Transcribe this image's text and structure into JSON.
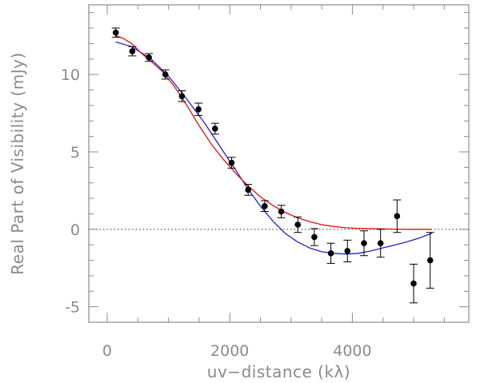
{
  "chart_data": {
    "type": "scatter",
    "title": "",
    "xlabel": "uv−distance (kλ)",
    "ylabel": "Real Part of Visibility (mJy)",
    "xlim": [
      -300,
      5900
    ],
    "ylim": [
      -6,
      14.5
    ],
    "x_ticks": [
      0,
      2000,
      4000
    ],
    "y_ticks": [
      -5,
      0,
      5,
      10
    ],
    "grid": false,
    "zero_line": "dotted",
    "colors": {
      "axis": "#8a8a8a",
      "points": "#000000",
      "blue_model": "#2222cc",
      "red_model": "#dd1111"
    },
    "series": [
      {
        "kind": "points_with_error_bars",
        "points": [
          {
            "x": 140,
            "y": 12.7,
            "err": 0.3
          },
          {
            "x": 410,
            "y": 11.5,
            "err": 0.3
          },
          {
            "x": 680,
            "y": 11.1,
            "err": 0.25
          },
          {
            "x": 950,
            "y": 10.0,
            "err": 0.3
          },
          {
            "x": 1220,
            "y": 8.6,
            "err": 0.35
          },
          {
            "x": 1490,
            "y": 7.75,
            "err": 0.4
          },
          {
            "x": 1760,
            "y": 6.5,
            "err": 0.35
          },
          {
            "x": 2030,
            "y": 4.3,
            "err": 0.35
          },
          {
            "x": 2300,
            "y": 2.55,
            "err": 0.35
          },
          {
            "x": 2570,
            "y": 1.5,
            "err": 0.35
          },
          {
            "x": 2840,
            "y": 1.15,
            "err": 0.4
          },
          {
            "x": 3110,
            "y": 0.3,
            "err": 0.5
          },
          {
            "x": 3380,
            "y": -0.5,
            "err": 0.55
          },
          {
            "x": 3650,
            "y": -1.55,
            "err": 0.65
          },
          {
            "x": 3920,
            "y": -1.4,
            "err": 0.7
          },
          {
            "x": 4190,
            "y": -0.9,
            "err": 0.8
          },
          {
            "x": 4460,
            "y": -0.9,
            "err": 0.9
          },
          {
            "x": 4730,
            "y": 0.85,
            "err": 1.05
          },
          {
            "x": 5000,
            "y": -3.5,
            "err": 1.25
          },
          {
            "x": 5270,
            "y": -2.0,
            "err": 1.8
          }
        ]
      },
      {
        "kind": "line",
        "color": "#2222cc",
        "points": [
          [
            140,
            12.1
          ],
          [
            400,
            11.8
          ],
          [
            700,
            11.05
          ],
          [
            1000,
            9.9
          ],
          [
            1300,
            8.4
          ],
          [
            1600,
            6.8
          ],
          [
            1900,
            5.0
          ],
          [
            2100,
            3.8
          ],
          [
            2300,
            2.6
          ],
          [
            2500,
            1.5
          ],
          [
            2700,
            0.55
          ],
          [
            2900,
            -0.25
          ],
          [
            3100,
            -0.8
          ],
          [
            3300,
            -1.2
          ],
          [
            3500,
            -1.45
          ],
          [
            3700,
            -1.55
          ],
          [
            3900,
            -1.6
          ],
          [
            4100,
            -1.55
          ],
          [
            4300,
            -1.4
          ],
          [
            4500,
            -1.2
          ],
          [
            4700,
            -1.0
          ],
          [
            4900,
            -0.8
          ],
          [
            5100,
            -0.55
          ],
          [
            5300,
            -0.25
          ]
        ]
      },
      {
        "kind": "line",
        "color": "#dd1111",
        "points": [
          [
            140,
            12.5
          ],
          [
            250,
            12.35
          ],
          [
            400,
            12.0
          ],
          [
            550,
            11.4
          ],
          [
            700,
            10.9
          ],
          [
            900,
            10.2
          ],
          [
            1100,
            9.2
          ],
          [
            1300,
            8.0
          ],
          [
            1500,
            6.7
          ],
          [
            1700,
            5.5
          ],
          [
            1900,
            4.5
          ],
          [
            2100,
            3.6
          ],
          [
            2300,
            2.8
          ],
          [
            2500,
            2.1
          ],
          [
            2700,
            1.55
          ],
          [
            2900,
            1.1
          ],
          [
            3100,
            0.75
          ],
          [
            3300,
            0.5
          ],
          [
            3500,
            0.3
          ],
          [
            3700,
            0.18
          ],
          [
            3900,
            0.1
          ],
          [
            4100,
            0.06
          ],
          [
            4400,
            0.03
          ],
          [
            4700,
            0.01
          ],
          [
            5000,
            0.0
          ],
          [
            5300,
            0.0
          ]
        ]
      }
    ]
  }
}
